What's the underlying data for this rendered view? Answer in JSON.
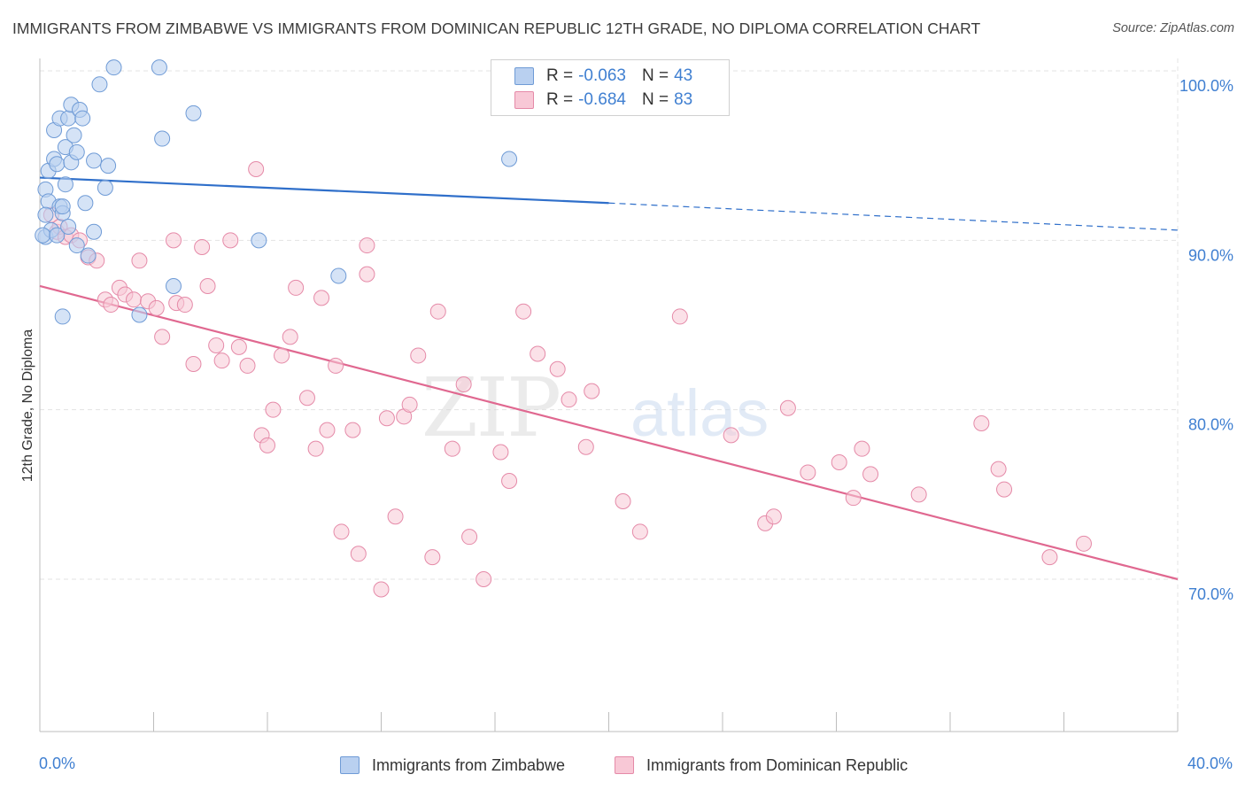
{
  "title": "IMMIGRANTS FROM ZIMBABWE VS IMMIGRANTS FROM DOMINICAN REPUBLIC 12TH GRADE, NO DIPLOMA CORRELATION CHART",
  "source": "Source: ZipAtlas.com",
  "watermark": {
    "zip": "ZIP",
    "atlas": "atlas"
  },
  "legend": {
    "r_label": "R =",
    "n_label": "N =",
    "rows": [
      {
        "r": "-0.063",
        "n": "43"
      },
      {
        "r": "-0.684",
        "n": "83"
      }
    ]
  },
  "colors": {
    "zimbabwe_fill": "#b9d0f0",
    "zimbabwe_stroke": "#6f9bd6",
    "zimbabwe_line": "#2f6fca",
    "dominican_fill": "#f8c8d6",
    "dominican_stroke": "#e58aa8",
    "dominican_line": "#e06890",
    "tick_label": "#3f7fd1",
    "grid": "#e3e3e3"
  },
  "chart_data": {
    "type": "scatter",
    "title": "IMMIGRANTS FROM ZIMBABWE VS IMMIGRANTS FROM DOMINICAN REPUBLIC 12TH GRADE, NO DIPLOMA CORRELATION CHART",
    "xlabel": "",
    "ylabel": "12th Grade, No Diploma",
    "xlim": [
      0,
      40
    ],
    "ylim": [
      60,
      104
    ],
    "x_tick_labels": [
      "0.0%",
      "40.0%"
    ],
    "y_ticks": [
      70,
      80,
      90,
      100
    ],
    "y_tick_labels": [
      "70.0%",
      "80.0%",
      "90.0%",
      "100.0%"
    ],
    "grid": true,
    "legend_position": "bottom-center",
    "series": [
      {
        "name": "Immigrants from Zimbabwe",
        "points": [
          [
            0.2,
            90.2
          ],
          [
            0.2,
            93.0
          ],
          [
            0.3,
            94.1
          ],
          [
            0.3,
            92.3
          ],
          [
            0.4,
            90.6
          ],
          [
            0.5,
            94.8
          ],
          [
            0.5,
            96.5
          ],
          [
            0.6,
            94.5
          ],
          [
            0.7,
            97.2
          ],
          [
            0.7,
            92.0
          ],
          [
            0.8,
            91.6
          ],
          [
            0.8,
            85.5
          ],
          [
            0.8,
            92.0
          ],
          [
            0.9,
            95.5
          ],
          [
            0.9,
            93.3
          ],
          [
            1.0,
            97.2
          ],
          [
            1.1,
            94.6
          ],
          [
            1.1,
            98.0
          ],
          [
            1.2,
            96.2
          ],
          [
            1.3,
            95.2
          ],
          [
            1.3,
            89.7
          ],
          [
            1.4,
            97.7
          ],
          [
            1.5,
            97.2
          ],
          [
            1.6,
            92.2
          ],
          [
            1.7,
            89.1
          ],
          [
            1.9,
            90.5
          ],
          [
            1.9,
            94.7
          ],
          [
            2.1,
            99.2
          ],
          [
            2.3,
            93.1
          ],
          [
            2.4,
            94.4
          ],
          [
            2.6,
            100.2
          ],
          [
            3.5,
            85.6
          ],
          [
            4.2,
            100.2
          ],
          [
            4.3,
            96.0
          ],
          [
            4.7,
            87.3
          ],
          [
            5.4,
            97.5
          ],
          [
            7.7,
            90.0
          ],
          [
            10.5,
            87.9
          ],
          [
            16.5,
            94.8
          ],
          [
            0.1,
            90.3
          ],
          [
            0.2,
            91.5
          ],
          [
            0.6,
            90.3
          ],
          [
            1.0,
            90.8
          ]
        ],
        "trend": {
          "x": [
            0,
            20
          ],
          "y": [
            93.7,
            92.2
          ],
          "dashed_to": [
            40,
            90.6
          ]
        }
      },
      {
        "name": "Immigrants from Dominican Republic",
        "points": [
          [
            0.4,
            91.5
          ],
          [
            0.6,
            90.5
          ],
          [
            0.7,
            90.8
          ],
          [
            0.9,
            90.2
          ],
          [
            1.1,
            90.3
          ],
          [
            1.4,
            90.0
          ],
          [
            1.7,
            89.0
          ],
          [
            2.0,
            88.8
          ],
          [
            2.3,
            86.5
          ],
          [
            2.5,
            86.2
          ],
          [
            2.8,
            87.2
          ],
          [
            3.0,
            86.8
          ],
          [
            3.3,
            86.5
          ],
          [
            3.5,
            88.8
          ],
          [
            3.8,
            86.4
          ],
          [
            4.1,
            86.0
          ],
          [
            4.3,
            84.3
          ],
          [
            4.7,
            90.0
          ],
          [
            4.8,
            86.3
          ],
          [
            5.1,
            86.2
          ],
          [
            5.4,
            82.7
          ],
          [
            5.7,
            89.6
          ],
          [
            5.9,
            87.3
          ],
          [
            6.2,
            83.8
          ],
          [
            6.4,
            82.9
          ],
          [
            6.7,
            90.0
          ],
          [
            7.0,
            83.7
          ],
          [
            7.3,
            82.6
          ],
          [
            7.6,
            94.2
          ],
          [
            7.8,
            78.5
          ],
          [
            8.0,
            77.9
          ],
          [
            8.2,
            80.0
          ],
          [
            8.5,
            83.2
          ],
          [
            8.8,
            84.3
          ],
          [
            9.0,
            87.2
          ],
          [
            9.4,
            80.7
          ],
          [
            9.7,
            77.7
          ],
          [
            9.9,
            86.6
          ],
          [
            10.1,
            78.8
          ],
          [
            10.4,
            82.6
          ],
          [
            10.6,
            72.8
          ],
          [
            11.0,
            78.8
          ],
          [
            11.2,
            71.5
          ],
          [
            11.5,
            88.0
          ],
          [
            11.5,
            89.7
          ],
          [
            12.0,
            69.4
          ],
          [
            12.2,
            79.5
          ],
          [
            12.5,
            73.7
          ],
          [
            12.8,
            79.6
          ],
          [
            13.0,
            80.3
          ],
          [
            13.3,
            83.2
          ],
          [
            13.8,
            71.3
          ],
          [
            14.0,
            85.8
          ],
          [
            14.5,
            77.7
          ],
          [
            14.9,
            81.5
          ],
          [
            15.1,
            72.5
          ],
          [
            15.6,
            70.0
          ],
          [
            16.2,
            77.5
          ],
          [
            16.5,
            75.8
          ],
          [
            17.0,
            85.8
          ],
          [
            17.5,
            83.3
          ],
          [
            18.2,
            82.4
          ],
          [
            18.6,
            80.6
          ],
          [
            19.2,
            77.8
          ],
          [
            19.4,
            81.1
          ],
          [
            20.5,
            74.6
          ],
          [
            21.1,
            72.8
          ],
          [
            22.5,
            85.5
          ],
          [
            24.3,
            78.5
          ],
          [
            25.5,
            73.3
          ],
          [
            25.8,
            73.7
          ],
          [
            26.3,
            80.1
          ],
          [
            27.0,
            76.3
          ],
          [
            28.1,
            76.9
          ],
          [
            28.6,
            74.8
          ],
          [
            28.9,
            77.7
          ],
          [
            29.2,
            76.2
          ],
          [
            30.9,
            75.0
          ],
          [
            33.1,
            79.2
          ],
          [
            33.7,
            76.5
          ],
          [
            33.9,
            75.3
          ],
          [
            35.5,
            71.3
          ],
          [
            36.7,
            72.1
          ]
        ],
        "trend": {
          "x": [
            0,
            40
          ],
          "y": [
            87.3,
            70.0
          ]
        }
      }
    ]
  }
}
